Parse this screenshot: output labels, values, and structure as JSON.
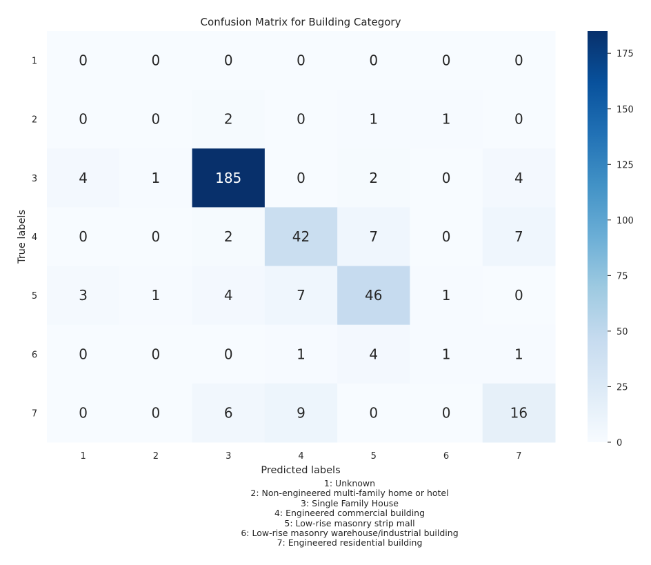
{
  "chart_data": {
    "type": "heatmap",
    "title": "Confusion Matrix for Building Category",
    "xlabel": "Predicted labels",
    "ylabel": "True labels",
    "x_categories": [
      "1",
      "2",
      "3",
      "4",
      "5",
      "6",
      "7"
    ],
    "y_categories": [
      "1",
      "2",
      "3",
      "4",
      "5",
      "6",
      "7"
    ],
    "values": [
      [
        0,
        0,
        0,
        0,
        0,
        0,
        0
      ],
      [
        0,
        0,
        2,
        0,
        1,
        1,
        0
      ],
      [
        4,
        1,
        185,
        0,
        2,
        0,
        4
      ],
      [
        0,
        0,
        2,
        42,
        7,
        0,
        7
      ],
      [
        3,
        1,
        4,
        7,
        46,
        1,
        0
      ],
      [
        0,
        0,
        0,
        1,
        4,
        1,
        1
      ],
      [
        0,
        0,
        6,
        9,
        0,
        0,
        16
      ]
    ],
    "colormap": "Blues",
    "color_low": "#f7fbff",
    "color_high": "#08306b",
    "vmin": 0,
    "vmax": 185,
    "colorbar_ticks": [
      0,
      25,
      50,
      75,
      100,
      125,
      150,
      175
    ],
    "colorbar_tick_labels": [
      "0",
      "25",
      "50",
      "75",
      "100",
      "125",
      "150",
      "175"
    ],
    "annotations": [
      "1: Unknown",
      "2: Non-engineered multi-family home or hotel",
      "3: Single Family House",
      "4: Engineered commercial building",
      "5: Low-rise masonry strip mall",
      "6: Low-rise masonry warehouse/industrial building",
      "7: Engineered residential building"
    ]
  }
}
